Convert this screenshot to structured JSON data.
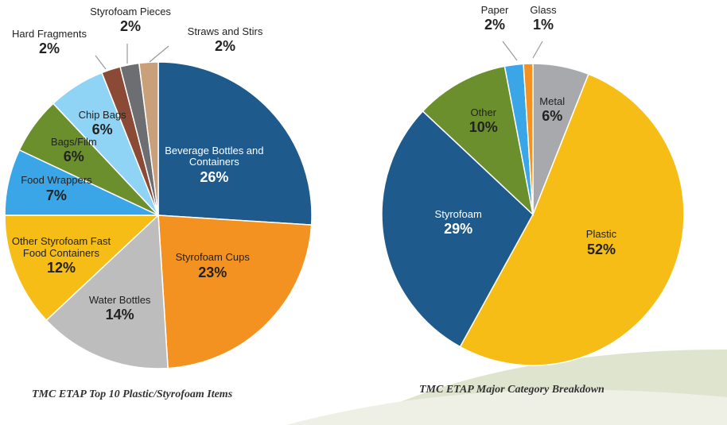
{
  "chart_data": [
    {
      "type": "pie",
      "title": "TMC ETAP Top 10 Plastic/Styrofoam Items",
      "categories": [
        "Beverage Bottles and Containers",
        "Styrofoam Cups",
        "Water Bottles",
        "Other Styrofoam Fast Food Containers",
        "Food Wrappers",
        "Bags/Film",
        "Chip Bags",
        "Hard Fragments",
        "Styrofoam Pieces",
        "Straws and Stirs"
      ],
      "values": [
        26,
        23,
        14,
        12,
        7,
        6,
        6,
        2,
        2,
        2
      ],
      "value_labels": [
        "26%",
        "23%",
        "14%",
        "12%",
        "7%",
        "6%",
        "6%",
        "2%",
        "2%",
        "2%"
      ],
      "colors": [
        "#1f5a8c",
        "#f39220",
        "#bdbdbd",
        "#f6bd16",
        "#3aa6e8",
        "#6b8f2c",
        "#8fd3f5",
        "#8b4a36",
        "#6d6e71",
        "#c9a07a"
      ]
    },
    {
      "type": "pie",
      "title": "TMC ETAP Major Category Breakdown",
      "categories": [
        "Metal",
        "Plastic",
        "Styrofoam",
        "Other",
        "Paper",
        "Glass"
      ],
      "values": [
        6,
        52,
        29,
        10,
        2,
        1
      ],
      "value_labels": [
        "6%",
        "52%",
        "29%",
        "10%",
        "2%",
        "1%"
      ],
      "colors": [
        "#a7a9ac",
        "#f6bd16",
        "#1f5a8c",
        "#6b8f2c",
        "#3aa6e8",
        "#f39220"
      ]
    }
  ]
}
